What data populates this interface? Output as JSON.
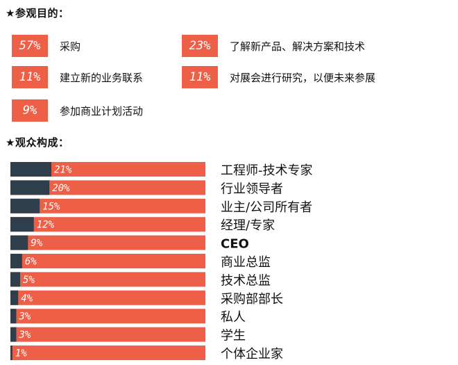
{
  "purpose_section": {
    "title": "★参观目的：",
    "items": [
      {
        "pct": "57%",
        "label": "采购"
      },
      {
        "pct": "23%",
        "label": "了解新产品、解决方案和技术"
      },
      {
        "pct": "11%",
        "label": "建立新的业务联系"
      },
      {
        "pct": "11%",
        "label": "对展会进行研究，以便未来参展"
      },
      {
        "pct": "9%",
        "label": "参加商业计划活动"
      }
    ]
  },
  "audience_section": {
    "title": "★观众构成："
  },
  "colors": {
    "accent": "#ee5f48",
    "bar_fill": "#2f3e4b"
  },
  "chart_data": {
    "type": "bar",
    "orientation": "horizontal",
    "stacked_100": true,
    "categories": [
      "工程师-技术专家",
      "行业领导者",
      "业主/公司所有者",
      "经理/专家",
      "CEO",
      "商业总监",
      "技术总监",
      "采购部部长",
      "私人",
      "学生",
      "个体企业家"
    ],
    "values": [
      21,
      20,
      15,
      12,
      9,
      6,
      5,
      4,
      3,
      3,
      1
    ],
    "value_labels": [
      "21%",
      "20%",
      "15%",
      "12%",
      "9%",
      "6%",
      "5%",
      "4%",
      "3%",
      "3%",
      "1%"
    ],
    "xlim": [
      0,
      100
    ],
    "grid": false
  }
}
